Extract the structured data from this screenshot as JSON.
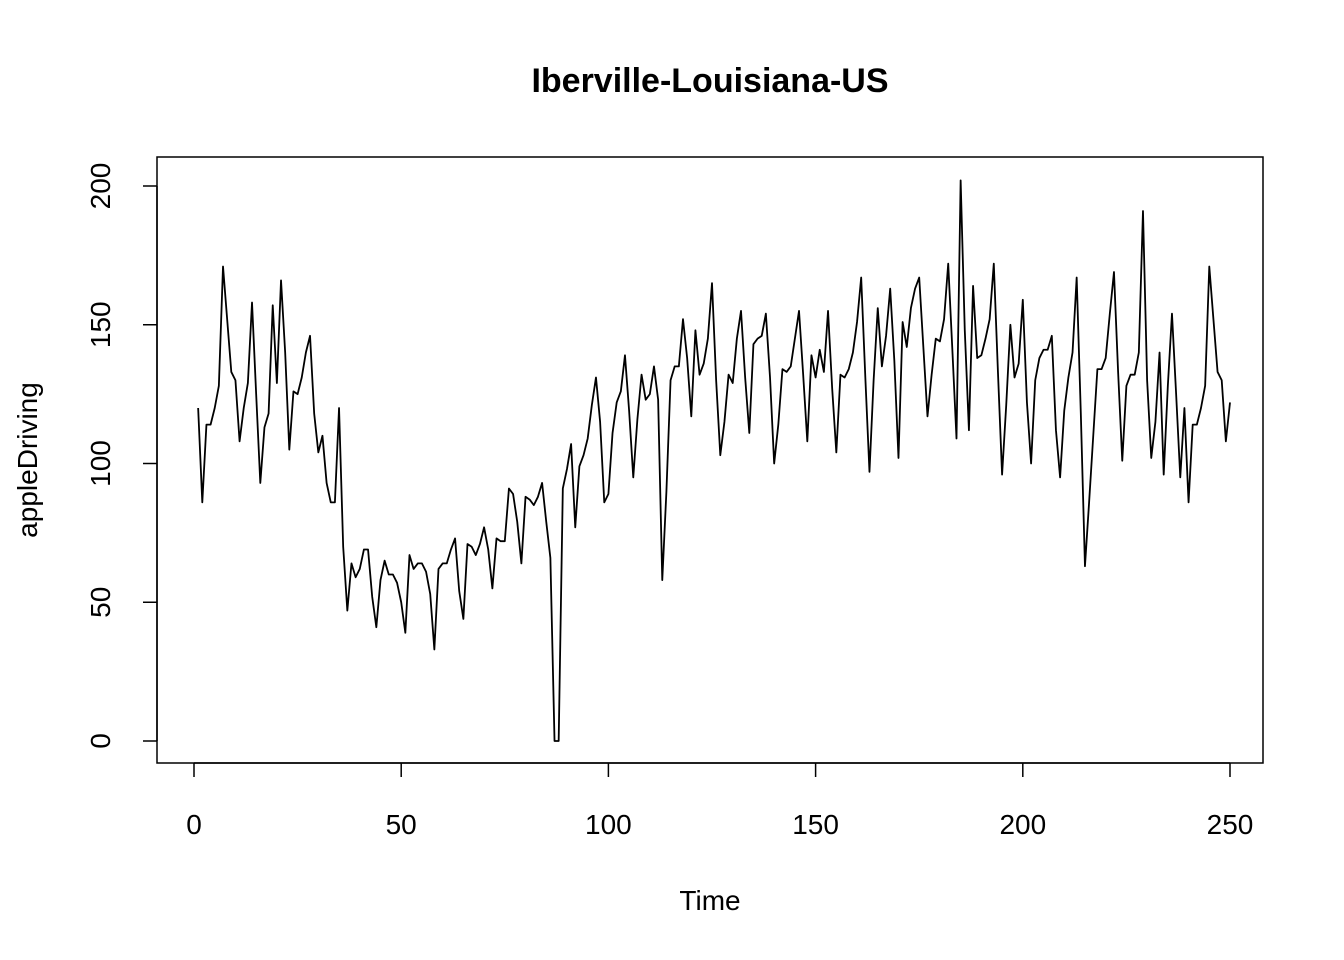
{
  "chart_data": {
    "type": "line",
    "title": "Iberville-Louisiana-US",
    "xlabel": "Time",
    "ylabel": "appleDriving",
    "xlim": [
      1,
      248
    ],
    "ylim": [
      0,
      202
    ],
    "xticks": [
      "0",
      "50",
      "100",
      "150",
      "200",
      "250"
    ],
    "yticks": [
      "0",
      "50",
      "100",
      "150",
      "200"
    ],
    "grid": false,
    "line_color": "#000000",
    "series": [
      {
        "x_start": 1,
        "values": [
          120,
          86,
          114,
          114,
          120,
          128,
          171,
          152,
          133,
          130,
          108,
          120,
          129,
          158,
          125,
          93,
          113,
          118,
          157,
          129,
          166,
          140,
          105,
          126,
          125,
          131,
          140,
          146,
          118,
          104,
          110,
          93,
          86,
          86,
          120,
          70,
          47,
          64,
          59,
          62,
          69,
          69,
          52,
          41,
          58,
          65,
          60,
          60,
          57,
          50,
          39,
          67,
          62,
          64,
          64,
          61,
          53,
          33,
          62,
          64,
          64,
          69,
          73,
          54,
          44,
          71,
          70,
          67,
          71,
          77,
          69,
          55,
          73,
          72,
          72,
          91,
          89,
          79,
          64,
          88,
          87,
          85,
          88,
          93,
          79,
          66,
          0,
          0,
          91,
          98,
          107,
          77,
          99,
          103,
          109,
          121,
          131,
          115,
          86,
          89,
          111,
          122,
          126,
          139,
          119,
          95,
          116,
          132,
          123,
          125,
          135,
          123,
          58,
          90,
          130,
          135,
          135,
          152,
          138,
          117,
          148,
          132,
          136,
          145,
          165,
          130,
          103,
          115,
          132,
          129,
          145,
          155,
          131,
          111,
          143,
          145,
          146,
          154,
          131,
          100,
          114,
          134,
          133,
          135,
          145,
          155,
          132,
          108,
          139,
          131,
          141,
          133,
          155,
          127,
          104,
          132,
          131,
          134,
          140,
          151,
          167,
          131,
          97,
          130,
          156,
          135,
          146,
          163,
          137,
          102,
          151,
          142,
          156,
          163,
          167,
          142,
          117,
          132,
          145,
          144,
          152,
          172,
          141,
          109,
          202,
          148,
          112,
          164,
          138,
          139,
          145,
          152,
          172,
          133,
          96,
          121,
          150,
          131,
          136,
          159,
          122,
          100,
          130,
          138,
          141,
          141,
          146,
          112,
          95,
          119,
          131,
          140,
          167,
          118,
          63,
          86,
          110,
          134,
          134,
          138,
          154,
          169,
          133,
          101,
          128,
          132,
          132,
          140,
          191,
          130,
          102,
          115,
          140,
          96,
          128,
          154,
          125,
          95,
          120,
          86,
          114,
          114,
          120,
          128,
          171,
          152,
          133,
          130,
          108,
          122
        ]
      }
    ]
  }
}
